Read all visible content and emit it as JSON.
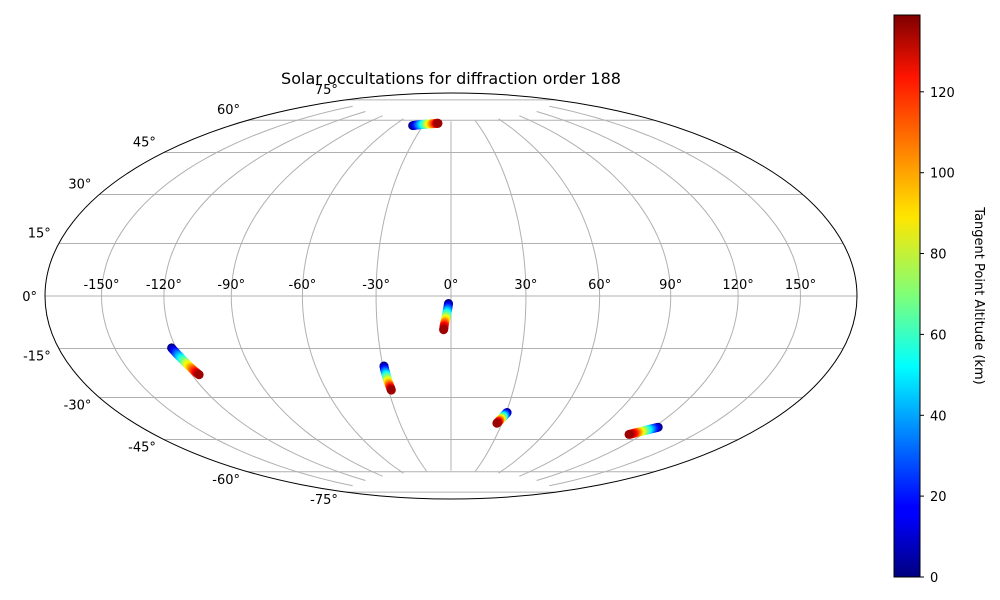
{
  "chart_data": {
    "type": "scatter",
    "projection": "hammer",
    "title": "Solar occultations for diffraction order 188",
    "xlabel": "",
    "ylabel": "",
    "grid": true,
    "lon_ticks": [
      -150,
      -120,
      -90,
      -60,
      -30,
      0,
      30,
      60,
      90,
      120,
      150
    ],
    "lon_tick_labels": [
      "-150°",
      "-120°",
      "-90°",
      "-60°",
      "-30°",
      "0°",
      "30°",
      "60°",
      "90°",
      "120°",
      "150°"
    ],
    "lat_ticks": [
      75,
      60,
      45,
      30,
      15,
      0,
      -15,
      -30,
      -45,
      -60,
      -75
    ],
    "lat_tick_labels": [
      "75°",
      "60°",
      "45°",
      "30°",
      "15°",
      "0°",
      "-15°",
      "-30°",
      "-45°",
      "-60°",
      "-75°"
    ],
    "colorbar": {
      "label": "Tangent Point Altitude (km)",
      "colormap": "jet",
      "range": [
        0,
        139
      ],
      "ticks": [
        0,
        20,
        40,
        60,
        80,
        100,
        120
      ],
      "tick_labels": [
        "0",
        "20",
        "40",
        "60",
        "80",
        "100",
        "120"
      ]
    },
    "series": [
      {
        "points": [
          {
            "lon": -41,
            "lat": 72.2,
            "alt": 0
          },
          {
            "lon": -37,
            "lat": 72.6,
            "alt": 20
          },
          {
            "lon": -33,
            "lat": 72.9,
            "alt": 40
          },
          {
            "lon": -29,
            "lat": 73.2,
            "alt": 60
          },
          {
            "lon": -25,
            "lat": 73.4,
            "alt": 80
          },
          {
            "lon": -21,
            "lat": 73.6,
            "alt": 100
          },
          {
            "lon": -17,
            "lat": 73.8,
            "alt": 120
          },
          {
            "lon": -15,
            "lat": 73.9,
            "alt": 135
          }
        ]
      },
      {
        "points": [
          {
            "lon": -1,
            "lat": -3,
            "alt": 0
          },
          {
            "lon": -1.2,
            "lat": -4.5,
            "alt": 20
          },
          {
            "lon": -1.5,
            "lat": -6,
            "alt": 40
          },
          {
            "lon": -1.8,
            "lat": -7.5,
            "alt": 60
          },
          {
            "lon": -2.1,
            "lat": -9,
            "alt": 80
          },
          {
            "lon": -2.5,
            "lat": -10.5,
            "alt": 100
          },
          {
            "lon": -2.8,
            "lat": -12,
            "alt": 120
          },
          {
            "lon": -3,
            "lat": -13.5,
            "alt": 135
          }
        ]
      },
      {
        "points": [
          {
            "lon": -122,
            "lat": -18,
            "alt": 0
          },
          {
            "lon": -121.2,
            "lat": -19.5,
            "alt": 20
          },
          {
            "lon": -120.4,
            "lat": -21,
            "alt": 40
          },
          {
            "lon": -119.6,
            "lat": -22.5,
            "alt": 60
          },
          {
            "lon": -118.8,
            "lat": -24,
            "alt": 80
          },
          {
            "lon": -118,
            "lat": -25.5,
            "alt": 100
          },
          {
            "lon": -117.2,
            "lat": -27,
            "alt": 120
          },
          {
            "lon": -116.5,
            "lat": -28,
            "alt": 135
          }
        ]
      },
      {
        "points": [
          {
            "lon": -29.5,
            "lat": -28,
            "alt": 0
          },
          {
            "lon": -29.5,
            "lat": -29.5,
            "alt": 20
          },
          {
            "lon": -29.4,
            "lat": -31,
            "alt": 40
          },
          {
            "lon": -29.3,
            "lat": -32.5,
            "alt": 60
          },
          {
            "lon": -29.2,
            "lat": -34,
            "alt": 80
          },
          {
            "lon": -29,
            "lat": -35.5,
            "alt": 100
          },
          {
            "lon": -28.8,
            "lat": -37,
            "alt": 120
          },
          {
            "lon": -28.7,
            "lat": -38,
            "alt": 135
          }
        ]
      },
      {
        "points": [
          {
            "lon": 30.5,
            "lat": -47.5,
            "alt": 0
          },
          {
            "lon": 30,
            "lat": -48.2,
            "alt": 20
          },
          {
            "lon": 29.5,
            "lat": -48.9,
            "alt": 40
          },
          {
            "lon": 29,
            "lat": -49.6,
            "alt": 60
          },
          {
            "lon": 28.5,
            "lat": -50.3,
            "alt": 80
          },
          {
            "lon": 28,
            "lat": -51,
            "alt": 100
          },
          {
            "lon": 27.5,
            "lat": -51.7,
            "alt": 120
          },
          {
            "lon": 27,
            "lat": -52.3,
            "alt": 135
          }
        ]
      },
      {
        "points": [
          {
            "lon": 122.5,
            "lat": -48,
            "alt": 0
          },
          {
            "lon": 121,
            "lat": -48.6,
            "alt": 20
          },
          {
            "lon": 119.5,
            "lat": -49.2,
            "alt": 40
          },
          {
            "lon": 118,
            "lat": -49.8,
            "alt": 60
          },
          {
            "lon": 116.5,
            "lat": -50.4,
            "alt": 80
          },
          {
            "lon": 115,
            "lat": -51,
            "alt": 100
          },
          {
            "lon": 113.5,
            "lat": -51.6,
            "alt": 120
          },
          {
            "lon": 112,
            "lat": -52.2,
            "alt": 135
          }
        ]
      }
    ]
  },
  "colors": {
    "grid": "#b0b0b0",
    "frame": "#000000"
  }
}
